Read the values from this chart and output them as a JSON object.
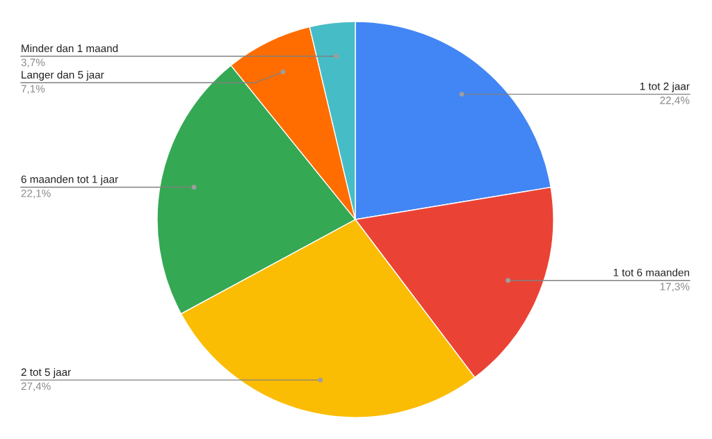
{
  "chart_data": {
    "type": "pie",
    "categories": [
      "1 tot 2 jaar",
      "1 tot 6 maanden",
      "2 tot 5 jaar",
      "6 maanden tot 1 jaar",
      "Langer dan 5 jaar",
      "Minder dan 1 maand"
    ],
    "values": [
      22.4,
      17.3,
      27.4,
      22.1,
      7.1,
      3.7
    ],
    "colors": [
      "#4285f4",
      "#ea4335",
      "#fbbc04",
      "#34a853",
      "#ff6d01",
      "#46bdc6"
    ],
    "value_labels": [
      "22,4%",
      "17,3%",
      "27,4%",
      "22,1%",
      "7,1%",
      "3,7%"
    ]
  }
}
